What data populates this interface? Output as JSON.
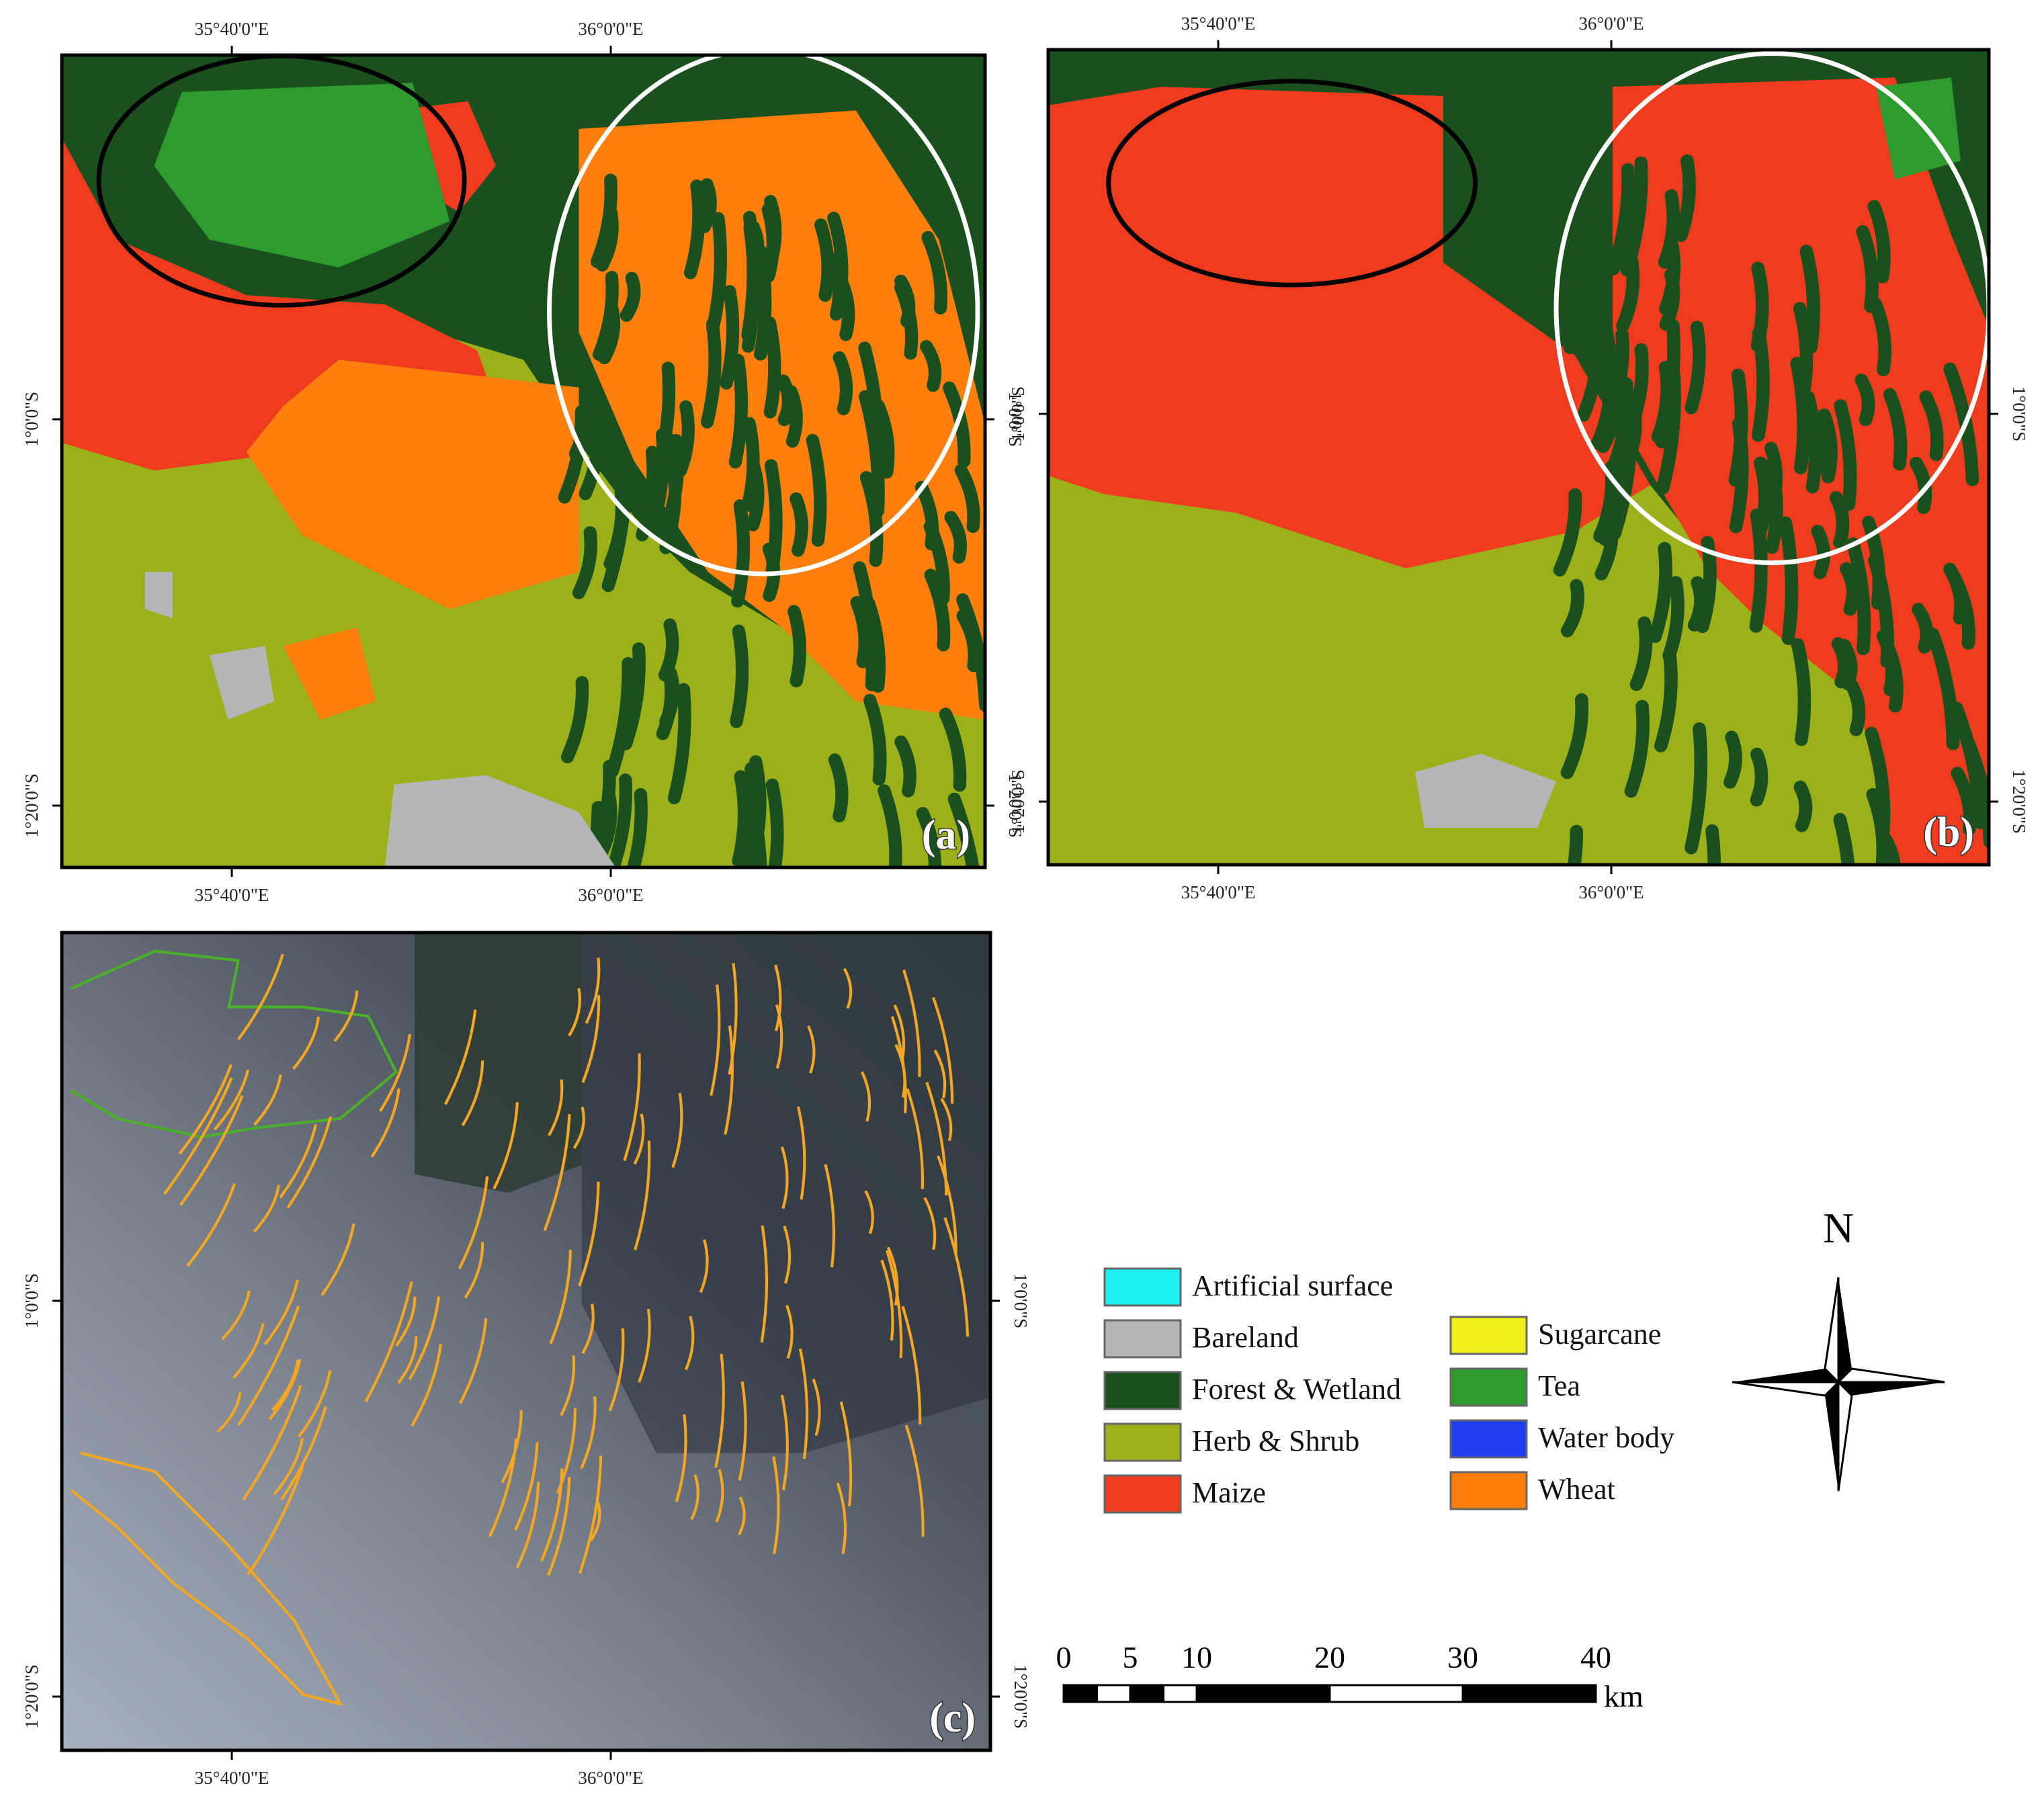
{
  "panels": [
    {
      "label": "(a)"
    },
    {
      "label": "(b)"
    },
    {
      "label": "(c)"
    }
  ],
  "coordinates": {
    "lon": [
      "35°40'0\"E",
      "36°0'0\"E"
    ],
    "lat": [
      "1°0'0\"S",
      "1°20'0\"S"
    ]
  },
  "legend": [
    {
      "label": "Artificial surface",
      "color": "#1ef0f0"
    },
    {
      "label": "Bareland",
      "color": "#b4b6b8"
    },
    {
      "label": "Forest & Wetland",
      "color": "#19501e"
    },
    {
      "label": "Herb & Shrub",
      "color": "#9bb019"
    },
    {
      "label": "Maize",
      "color": "#f03c1e"
    },
    {
      "label": "Sugarcane",
      "color": "#f0f01e"
    },
    {
      "label": "Tea",
      "color": "#2d9b2d"
    },
    {
      "label": "Water body",
      "color": "#1e3cf0"
    },
    {
      "label": "Wheat",
      "color": "#ff7f0e"
    }
  ],
  "scale_bar": {
    "ticks": [
      0,
      5,
      10,
      20,
      30,
      40
    ],
    "unit": "km"
  },
  "north": "N"
}
